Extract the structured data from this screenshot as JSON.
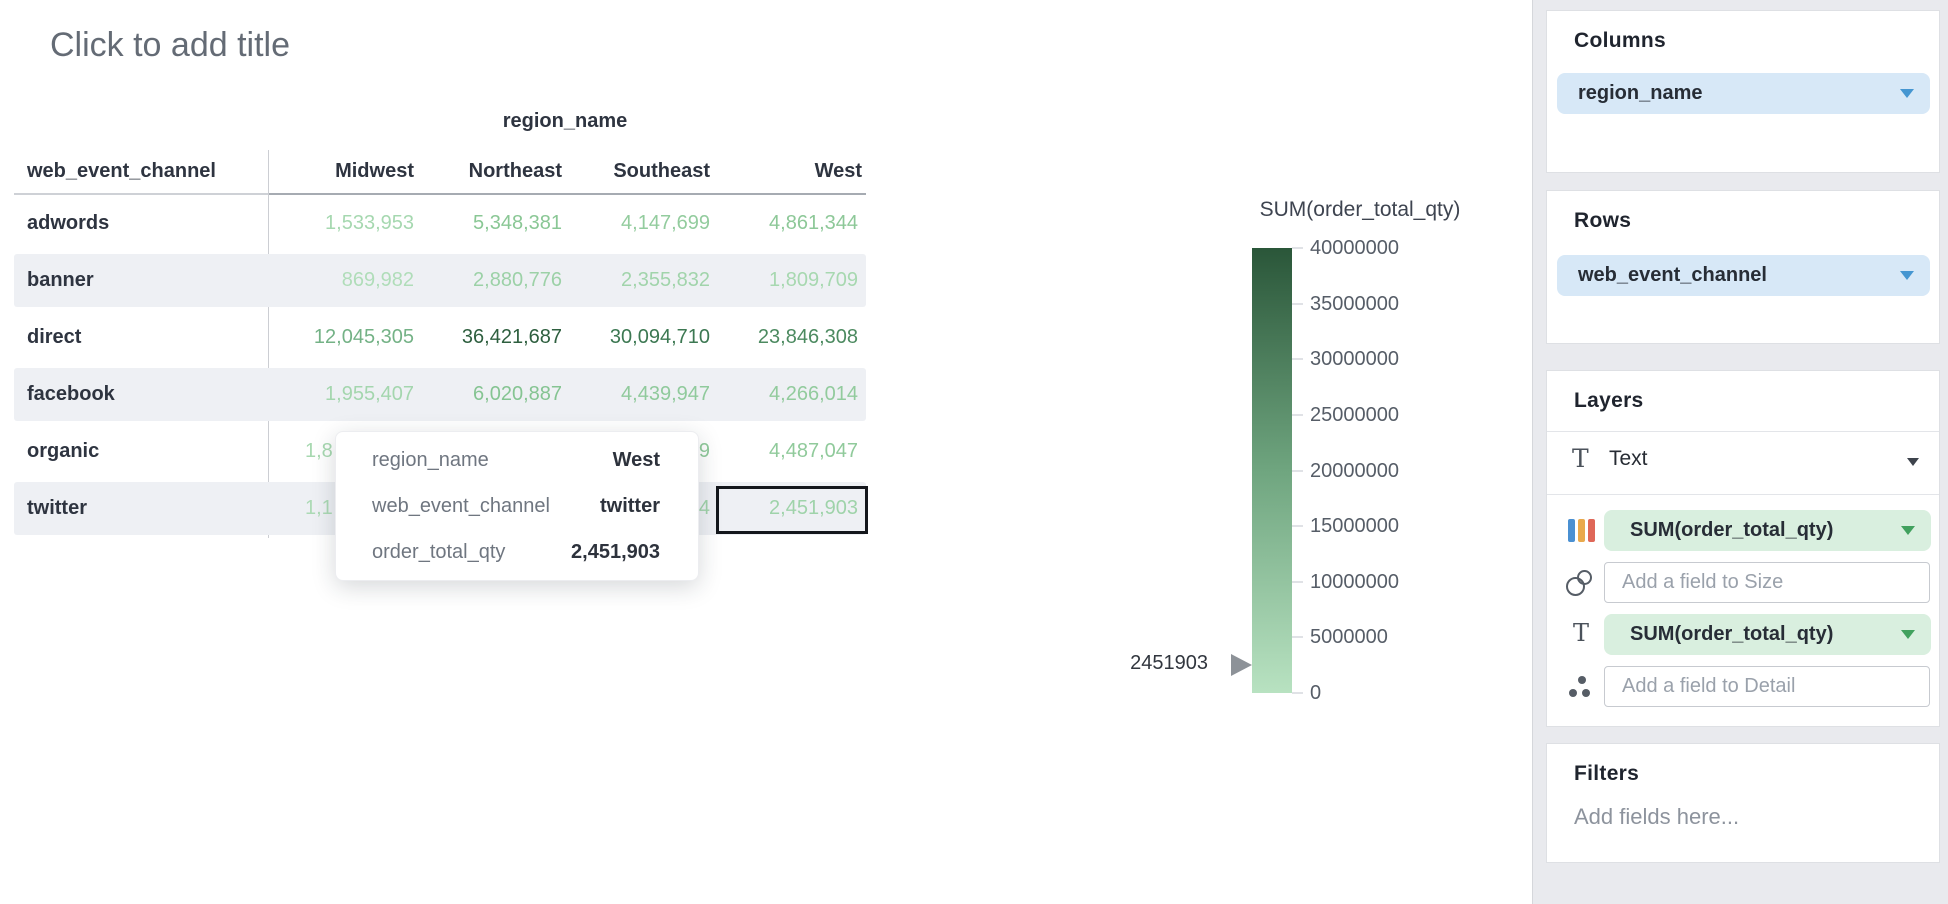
{
  "chart": {
    "title_placeholder": "Click to add title",
    "pivot": {
      "column_dimension": "region_name",
      "row_dimension": "web_event_channel",
      "column_headers": [
        "Midwest",
        "Northeast",
        "Southeast",
        "West"
      ],
      "rows": [
        {
          "label": "adwords",
          "cells": [
            {
              "t": "1,533,953",
              "color": "#a6d8b0"
            },
            {
              "t": "5,348,381",
              "color": "#8ac795"
            },
            {
              "t": "4,147,699",
              "color": "#93cc9e"
            },
            {
              "t": "4,861,344",
              "color": "#8dc898"
            }
          ]
        },
        {
          "label": "banner",
          "cells": [
            {
              "t": "869,982",
              "color": "#b0ddb9"
            },
            {
              "t": "2,880,776",
              "color": "#9cd1a7"
            },
            {
              "t": "2,355,832",
              "color": "#a1d4ab"
            },
            {
              "t": "1,809,709",
              "color": "#a7d8b0"
            }
          ]
        },
        {
          "label": "direct",
          "cells": [
            {
              "t": "12,045,305",
              "color": "#74b286"
            },
            {
              "t": "36,421,687",
              "color": "#2e5f3f"
            },
            {
              "t": "30,094,710",
              "color": "#3c7852"
            },
            {
              "t": "23,846,308",
              "color": "#4c8a60"
            }
          ]
        },
        {
          "label": "facebook",
          "cells": [
            {
              "t": "1,955,407",
              "color": "#a4d6ae"
            },
            {
              "t": "6,020,887",
              "color": "#85c492"
            },
            {
              "t": "4,439,947",
              "color": "#90ca9c"
            },
            {
              "t": "4,266,014",
              "color": "#92cb9d"
            }
          ]
        },
        {
          "label": "organic",
          "cells": [
            {
              "t": "1,8",
              "color": "#a7d8b0",
              "frag": true
            },
            {
              "t": ""
            },
            {
              "t": "9",
              "color": "#90ca9b"
            },
            {
              "t": "4,487,047",
              "color": "#90ca9b"
            }
          ]
        },
        {
          "label": "twitter",
          "cells": [
            {
              "t": "1,1",
              "color": "#acdab5",
              "frag": true
            },
            {
              "t": ""
            },
            {
              "t": "4",
              "color": "#a0d3aa"
            },
            {
              "t": "2,451,903",
              "color": "#9fd3aa"
            }
          ]
        }
      ]
    },
    "tooltip": {
      "rows": [
        {
          "label": "region_name",
          "value": "West"
        },
        {
          "label": "web_event_channel",
          "value": "twitter"
        },
        {
          "label": "order_total_qty",
          "value": "2,451,903"
        }
      ]
    },
    "legend": {
      "title": "SUM(order_total_qty)",
      "ticks": [
        "40000000",
        "35000000",
        "30000000",
        "25000000",
        "20000000",
        "15000000",
        "10000000",
        "5000000",
        "0"
      ],
      "marker_label": "2451903",
      "gradient_top": "#2a5639",
      "gradient_bottom": "#b8e2c1"
    }
  },
  "sidebar": {
    "columns": {
      "title": "Columns",
      "field": "region_name"
    },
    "rows": {
      "title": "Rows",
      "field": "web_event_channel"
    },
    "layers": {
      "title": "Layers",
      "layer_type": "Text",
      "color_field": "SUM(order_total_qty)",
      "size_placeholder": "Add a field to Size",
      "text_field": "SUM(order_total_qty)",
      "detail_placeholder": "Add a field to Detail"
    },
    "filters": {
      "title": "Filters",
      "placeholder": "Add fields here..."
    }
  },
  "colors": {
    "pill_blue_bg": "#d7e8f7",
    "pill_blue_caret": "#4596d1",
    "pill_green_bg": "#d9efdf",
    "pill_green_caret": "#41a15e",
    "row_stripe": "#eef0f4",
    "selection_border": "#14171c",
    "sidebar_bg": "#e9eaee"
  }
}
